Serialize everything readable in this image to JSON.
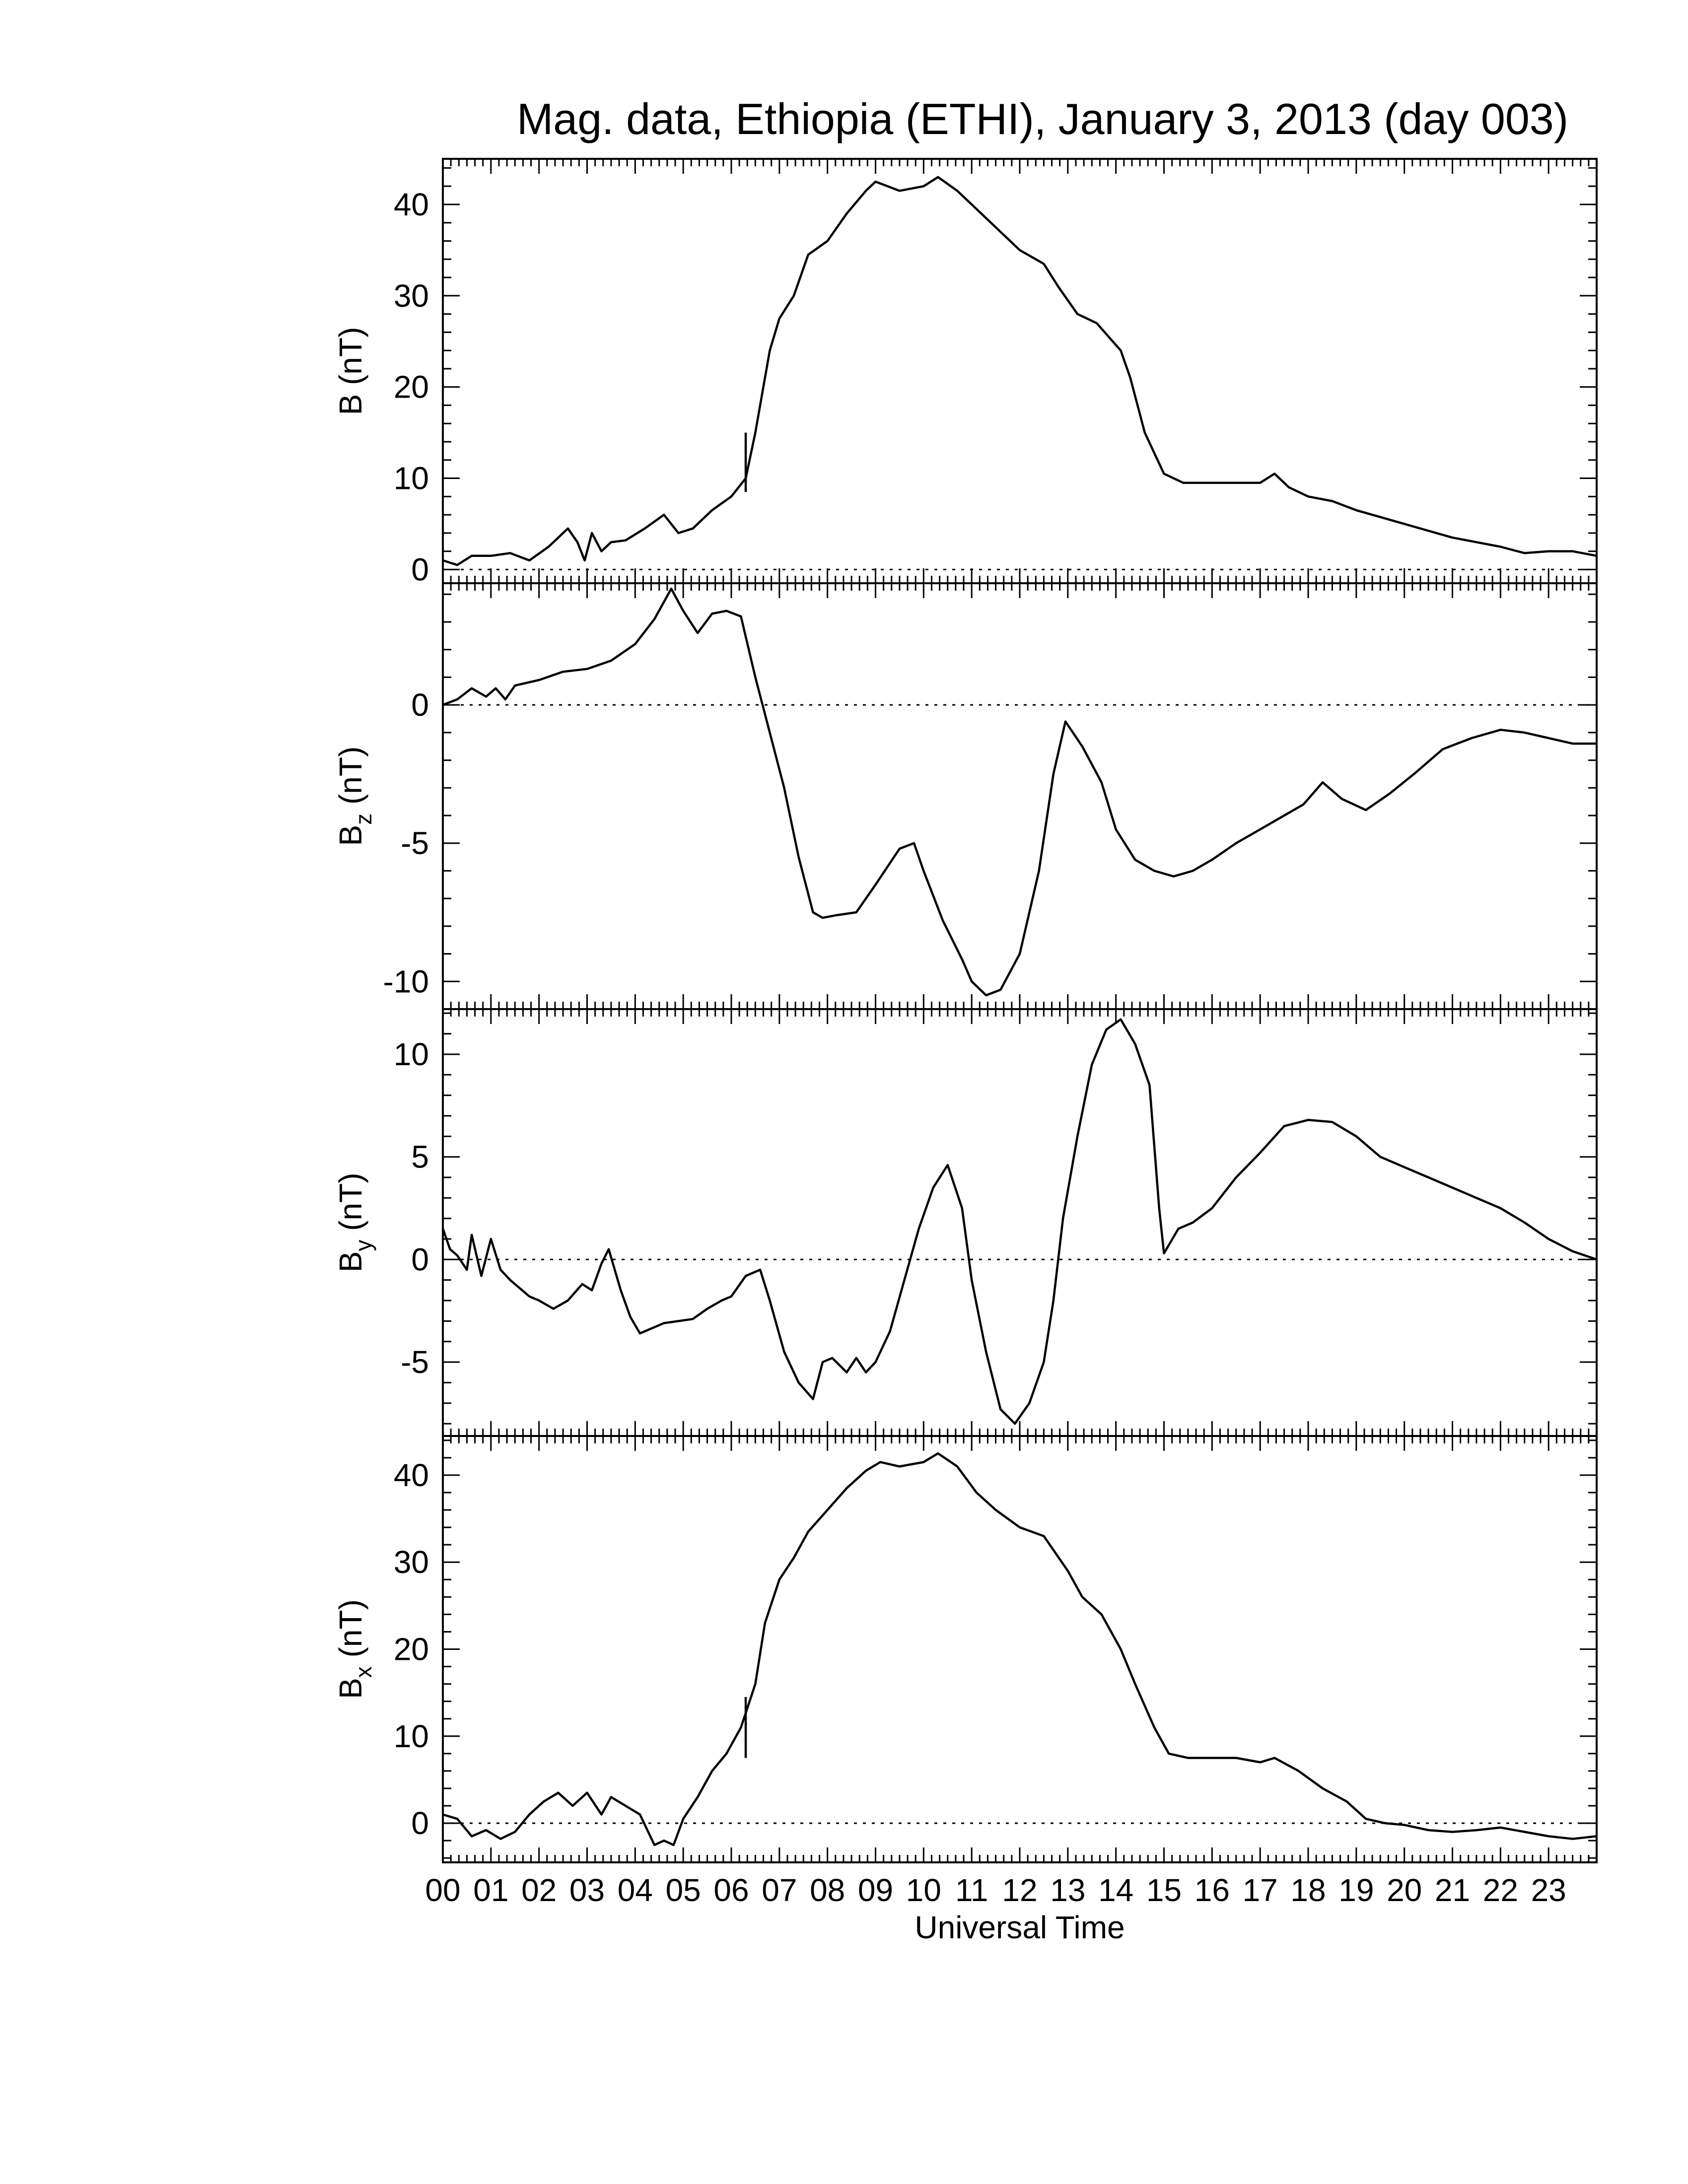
{
  "chart_data": {
    "type": "line",
    "title": "Mag. data, Ethiopia (ETHI), January 3, 2013 (day 003)",
    "xlabel": "Universal Time",
    "xlim": [
      0,
      24
    ],
    "x_tick_labels": [
      "00",
      "01",
      "02",
      "03",
      "04",
      "05",
      "06",
      "07",
      "08",
      "09",
      "10",
      "11",
      "12",
      "13",
      "14",
      "15",
      "16",
      "17",
      "18",
      "19",
      "20",
      "21",
      "22",
      "23"
    ],
    "grid": false,
    "zero_reference_line": "dotted",
    "panels": [
      {
        "id": "B",
        "ylabel": "B (nT)",
        "ylabel_main": "B",
        "ylabel_sub": "",
        "ylabel_unit": "(nT)",
        "ylim": [
          -1.5,
          45
        ],
        "y_ticks": [
          0,
          10,
          20,
          30,
          40
        ],
        "y_tick_labels": [
          "0",
          "10",
          "20",
          "30",
          "40"
        ],
        "x": [
          0,
          0.3,
          0.6,
          1.0,
          1.4,
          1.8,
          2.2,
          2.6,
          2.8,
          2.95,
          3.1,
          3.3,
          3.5,
          3.8,
          4.2,
          4.6,
          4.9,
          5.2,
          5.6,
          6.0,
          6.3,
          6.5,
          6.8,
          7.0,
          7.3,
          7.6,
          8.0,
          8.4,
          8.8,
          9.0,
          9.5,
          10.0,
          10.3,
          10.7,
          11.2,
          11.6,
          12.0,
          12.5,
          12.8,
          13.2,
          13.6,
          14.1,
          14.3,
          14.6,
          15.0,
          15.4,
          16.0,
          16.5,
          17.0,
          17.3,
          17.6,
          18.0,
          18.5,
          19.0,
          20.0,
          21.0,
          22.0,
          22.5,
          23.0,
          23.5,
          24.0
        ],
        "values": [
          1.0,
          0.5,
          1.5,
          1.5,
          1.8,
          1.0,
          2.5,
          4.5,
          3.0,
          1.0,
          4.0,
          2.0,
          3.0,
          3.2,
          4.5,
          6.0,
          4.0,
          4.5,
          6.5,
          8.0,
          10.0,
          15.0,
          24.0,
          27.5,
          30.0,
          34.5,
          36.0,
          39.0,
          41.5,
          42.5,
          41.5,
          42.0,
          43.0,
          41.5,
          39.0,
          37.0,
          35.0,
          33.5,
          31.0,
          28.0,
          27.0,
          24.0,
          21.0,
          15.0,
          10.5,
          9.5,
          9.5,
          9.5,
          9.5,
          10.5,
          9.0,
          8.0,
          7.5,
          6.5,
          5.0,
          3.5,
          2.5,
          1.8,
          2.0,
          2.0,
          1.5
        ],
        "spikes": [
          {
            "x": 6.3,
            "from": 8.5,
            "to": 15.0
          }
        ]
      },
      {
        "id": "Bz",
        "ylabel": "Bz (nT)",
        "ylabel_main": "B",
        "ylabel_sub": "z",
        "ylabel_unit": "(nT)",
        "ylim": [
          -11,
          4.4
        ],
        "y_ticks": [
          -10,
          -5,
          0
        ],
        "y_tick_labels": [
          "-10",
          "-5",
          "0"
        ],
        "x": [
          0,
          0.3,
          0.6,
          0.9,
          1.1,
          1.3,
          1.5,
          2.0,
          2.5,
          3.0,
          3.5,
          4.0,
          4.4,
          4.75,
          5.0,
          5.3,
          5.6,
          5.9,
          6.2,
          6.5,
          6.8,
          7.1,
          7.4,
          7.7,
          7.9,
          8.2,
          8.6,
          9.0,
          9.5,
          9.8,
          10.0,
          10.4,
          10.8,
          11.0,
          11.3,
          11.6,
          12.0,
          12.4,
          12.7,
          12.95,
          13.3,
          13.7,
          14.0,
          14.4,
          14.8,
          15.2,
          15.6,
          16.0,
          16.5,
          17.0,
          17.5,
          17.9,
          18.3,
          18.7,
          19.2,
          19.7,
          20.2,
          20.8,
          21.4,
          22.0,
          22.5,
          23.0,
          23.5,
          24.0
        ],
        "values": [
          0.0,
          0.2,
          0.6,
          0.3,
          0.6,
          0.2,
          0.7,
          0.9,
          1.2,
          1.3,
          1.6,
          2.2,
          3.1,
          4.2,
          3.4,
          2.6,
          3.3,
          3.4,
          3.2,
          1.0,
          -1.0,
          -3.0,
          -5.5,
          -7.5,
          -7.7,
          -7.6,
          -7.5,
          -6.5,
          -5.2,
          -5.0,
          -6.0,
          -7.8,
          -9.2,
          -10.0,
          -10.5,
          -10.3,
          -9.0,
          -6.0,
          -2.5,
          -0.6,
          -1.5,
          -2.8,
          -4.5,
          -5.6,
          -6.0,
          -6.2,
          -6.0,
          -5.6,
          -5.0,
          -4.5,
          -4.0,
          -3.6,
          -2.8,
          -3.4,
          -3.8,
          -3.2,
          -2.5,
          -1.6,
          -1.2,
          -0.9,
          -1.0,
          -1.2,
          -1.4,
          -1.4
        ]
      },
      {
        "id": "By",
        "ylabel": "By (nT)",
        "ylabel_main": "B",
        "ylabel_sub": "y",
        "ylabel_unit": "(nT)",
        "ylim": [
          -8.6,
          12.2
        ],
        "y_ticks": [
          -5,
          0,
          5,
          10
        ],
        "y_tick_labels": [
          "-5",
          "0",
          "5",
          "10"
        ],
        "x": [
          0,
          0.15,
          0.3,
          0.5,
          0.6,
          0.8,
          1.0,
          1.2,
          1.4,
          1.6,
          1.8,
          2.0,
          2.3,
          2.6,
          2.9,
          3.1,
          3.3,
          3.45,
          3.7,
          3.9,
          4.1,
          4.3,
          4.6,
          4.9,
          5.2,
          5.5,
          5.8,
          6.0,
          6.3,
          6.6,
          6.8,
          7.1,
          7.4,
          7.7,
          7.9,
          8.1,
          8.4,
          8.6,
          8.8,
          9.0,
          9.3,
          9.6,
          9.9,
          10.2,
          10.5,
          10.8,
          11.0,
          11.3,
          11.6,
          11.9,
          12.2,
          12.5,
          12.7,
          12.9,
          13.2,
          13.5,
          13.8,
          14.1,
          14.4,
          14.7,
          14.9,
          15.0,
          15.3,
          15.6,
          16.0,
          16.5,
          17.0,
          17.5,
          18.0,
          18.5,
          19.0,
          19.5,
          20.0,
          20.5,
          21.0,
          21.5,
          22.0,
          22.5,
          23.0,
          23.5,
          24.0
        ],
        "values": [
          1.5,
          0.5,
          0.2,
          -0.5,
          1.2,
          -0.8,
          1.0,
          -0.5,
          -1.0,
          -1.4,
          -1.8,
          -2.0,
          -2.4,
          -2.0,
          -1.2,
          -1.5,
          -0.2,
          0.5,
          -1.5,
          -2.8,
          -3.6,
          -3.4,
          -3.1,
          -3.0,
          -2.9,
          -2.4,
          -2.0,
          -1.8,
          -0.8,
          -0.5,
          -2.0,
          -4.5,
          -6.0,
          -6.8,
          -5.0,
          -4.8,
          -5.5,
          -4.8,
          -5.5,
          -5.0,
          -3.5,
          -1.0,
          1.5,
          3.5,
          4.6,
          2.5,
          -1.0,
          -4.5,
          -7.3,
          -8.0,
          -7.0,
          -5.0,
          -2.0,
          2.0,
          6.0,
          9.5,
          11.2,
          11.7,
          10.5,
          8.5,
          2.5,
          0.3,
          1.5,
          1.8,
          2.5,
          4.0,
          5.2,
          6.5,
          6.8,
          6.7,
          6.0,
          5.0,
          4.5,
          4.0,
          3.5,
          3.0,
          2.5,
          1.8,
          1.0,
          0.4,
          0.0
        ]
      },
      {
        "id": "Bx",
        "ylabel": "Bx (nT)",
        "ylabel_main": "B",
        "ylabel_sub": "x",
        "ylabel_unit": "(nT)",
        "ylim": [
          -4.5,
          44.5
        ],
        "y_ticks": [
          0,
          10,
          20,
          30,
          40
        ],
        "y_tick_labels": [
          "0",
          "10",
          "20",
          "30",
          "40"
        ],
        "x": [
          0,
          0.3,
          0.6,
          0.9,
          1.2,
          1.5,
          1.8,
          2.1,
          2.4,
          2.7,
          3.0,
          3.3,
          3.5,
          3.8,
          4.1,
          4.4,
          4.6,
          4.8,
          5.0,
          5.3,
          5.6,
          5.9,
          6.2,
          6.5,
          6.7,
          7.0,
          7.3,
          7.6,
          8.0,
          8.4,
          8.8,
          9.1,
          9.5,
          10.0,
          10.3,
          10.7,
          11.1,
          11.5,
          12.0,
          12.5,
          13.0,
          13.3,
          13.7,
          14.1,
          14.4,
          14.8,
          15.1,
          15.5,
          16.0,
          16.5,
          17.0,
          17.3,
          17.8,
          18.3,
          18.8,
          19.2,
          19.6,
          20.0,
          20.5,
          21.0,
          21.5,
          22.0,
          22.5,
          23.0,
          23.5,
          24.0
        ],
        "values": [
          1.0,
          0.5,
          -1.5,
          -0.8,
          -1.8,
          -1.0,
          1.0,
          2.5,
          3.5,
          2.0,
          3.5,
          1.0,
          3.0,
          2.0,
          1.0,
          -2.5,
          -2.0,
          -2.5,
          0.5,
          3.0,
          6.0,
          8.0,
          11.0,
          16.0,
          23.0,
          28.0,
          30.5,
          33.5,
          36.0,
          38.5,
          40.5,
          41.5,
          41.0,
          41.5,
          42.5,
          41.0,
          38.0,
          36.0,
          34.0,
          33.0,
          29.0,
          26.0,
          24.0,
          20.0,
          16.0,
          11.0,
          8.0,
          7.5,
          7.5,
          7.5,
          7.0,
          7.5,
          6.0,
          4.0,
          2.5,
          0.5,
          0.0,
          -0.2,
          -0.8,
          -1.0,
          -0.8,
          -0.5,
          -1.0,
          -1.5,
          -1.8,
          -1.5
        ],
        "spikes": [
          {
            "x": 6.3,
            "from": 7.5,
            "to": 14.5
          }
        ]
      }
    ]
  }
}
